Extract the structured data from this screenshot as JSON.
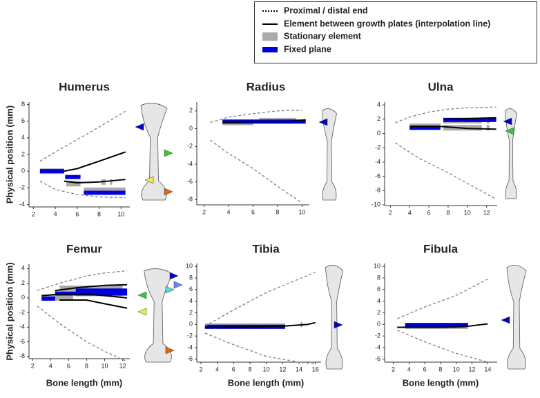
{
  "legend": {
    "end": {
      "label": "Proximal / distal end",
      "color": "#888888"
    },
    "interpolation": {
      "label": "Element between growth plates (interpolation line)",
      "color": "#000000"
    },
    "stationary": {
      "label": "Stationary element",
      "color": "#aaaaaa"
    },
    "fixed": {
      "label": "Fixed plane",
      "color": "#0000dd"
    }
  },
  "chart_data": [
    {
      "type": "line",
      "title": "Humerus",
      "ylabel": "Physical position (mm)",
      "xlim": [
        1.6,
        10.8
      ],
      "ylim": [
        -4.3,
        8.3
      ],
      "xticks": [
        2,
        4,
        6,
        8,
        10
      ],
      "yticks": [
        -4,
        -2,
        0,
        2,
        4,
        6,
        8
      ],
      "end_lines": [
        {
          "x": [
            2.6,
            4,
            6,
            8,
            10.4
          ],
          "values": [
            1.2,
            2.3,
            3.8,
            5.3,
            7.2
          ]
        },
        {
          "x": [
            2.6,
            4,
            6,
            8,
            10.4
          ],
          "values": [
            -1.2,
            -2.2,
            -2.8,
            -3.1,
            -3.2
          ]
        }
      ],
      "interpolation": [
        {
          "x": [
            4.8,
            6,
            8,
            10.4
          ],
          "values": [
            0,
            0.3,
            1.2,
            2.3
          ]
        },
        {
          "x": [
            4.8,
            6,
            8,
            10.4
          ],
          "values": [
            -1.2,
            -1.4,
            -1.3,
            -1
          ]
        }
      ],
      "stationary": [
        {
          "x": [
            2.6,
            4.8
          ],
          "y": 0
        },
        {
          "x": [
            5,
            6.3
          ],
          "y": -1.5
        },
        {
          "x": [
            8.2,
            8.6
          ],
          "y": -1.3
        },
        {
          "x": [
            9,
            9.2
          ],
          "y": -1.3
        },
        {
          "x": [
            6.6,
            10.4
          ],
          "y": -2.3
        }
      ],
      "fixed": [
        {
          "x": [
            2.6,
            4.8
          ],
          "y": 0
        },
        {
          "x": [
            4.9,
            6.3
          ],
          "y": -0.7
        },
        {
          "x": [
            6.6,
            10.4
          ],
          "y": -2.6
        }
      ]
    },
    {
      "type": "line",
      "title": "Radius",
      "xlim": [
        1.4,
        10.6
      ],
      "ylim": [
        -8.6,
        3
      ],
      "xticks": [
        2,
        4,
        6,
        8,
        10
      ],
      "yticks": [
        -8,
        -6,
        -4,
        -2,
        0,
        2
      ],
      "end_lines": [
        {
          "x": [
            2.5,
            4,
            6,
            8,
            10
          ],
          "values": [
            0.7,
            1.3,
            1.7,
            2,
            2.1
          ]
        },
        {
          "x": [
            2.5,
            4,
            6,
            8,
            10
          ],
          "values": [
            -1.3,
            -2.8,
            -4.5,
            -6.5,
            -8.4
          ]
        }
      ],
      "interpolation": [
        {
          "x": [
            3.5,
            6,
            9,
            10.3
          ],
          "values": [
            0.7,
            0.8,
            0.8,
            1
          ]
        }
      ],
      "stationary": [
        {
          "x": [
            3.5,
            6
          ],
          "y": 0.7
        },
        {
          "x": [
            6.5,
            9.5
          ],
          "y": 0.9
        }
      ],
      "fixed": [
        {
          "x": [
            3.5,
            10.3
          ],
          "y": 0.8
        }
      ]
    },
    {
      "type": "line",
      "title": "Ulna",
      "xlim": [
        1.4,
        13.1
      ],
      "ylim": [
        -10.1,
        4.4
      ],
      "xticks": [
        2,
        4,
        6,
        8,
        10,
        12
      ],
      "yticks": [
        -10,
        -8,
        -6,
        -4,
        -2,
        0,
        2,
        4
      ],
      "end_lines": [
        {
          "x": [
            2.5,
            4,
            6,
            8,
            10,
            13
          ],
          "values": [
            1.5,
            2.3,
            3,
            3.4,
            3.6,
            3.7
          ]
        },
        {
          "x": [
            2.5,
            5,
            8,
            10,
            13
          ],
          "values": [
            -1.3,
            -3.5,
            -5.5,
            -7,
            -9.2
          ]
        }
      ],
      "interpolation": [
        {
          "x": [
            7.5,
            13
          ],
          "values": [
            2,
            2.2
          ]
        },
        {
          "x": [
            4,
            7,
            10,
            13
          ],
          "values": [
            1,
            1,
            0.7,
            0.6
          ]
        }
      ],
      "stationary": [
        {
          "x": [
            4,
            7.2
          ],
          "y": 1
        },
        {
          "x": [
            7.5,
            11.5
          ],
          "y": 1.8
        },
        {
          "x": [
            7.5,
            11.5
          ],
          "y": 0.8
        },
        {
          "x": [
            12,
            12.3
          ],
          "y": 1.8
        },
        {
          "x": [
            12,
            12.3
          ],
          "y": 0.8
        }
      ],
      "fixed": [
        {
          "x": [
            4,
            7.2
          ],
          "y": 0.8
        },
        {
          "x": [
            7.5,
            13
          ],
          "y": 1.9
        }
      ]
    },
    {
      "type": "line",
      "title": "Femur",
      "ylabel": "Physical position (mm)",
      "xlabel": "Bone length (mm)",
      "xlim": [
        1.6,
        12.8
      ],
      "ylim": [
        -8.3,
        4.6
      ],
      "xticks": [
        2,
        4,
        6,
        8,
        10,
        12
      ],
      "yticks": [
        -8,
        -6,
        -4,
        -2,
        0,
        2,
        4
      ],
      "end_lines": [
        {
          "x": [
            2.5,
            5,
            8,
            10,
            12.5
          ],
          "values": [
            1,
            2,
            3,
            3.4,
            3.7
          ]
        },
        {
          "x": [
            2.5,
            5,
            8,
            10,
            12.5
          ],
          "values": [
            -1.1,
            -3.5,
            -6,
            -7.3,
            -8.7
          ]
        }
      ],
      "interpolation": [
        {
          "x": [
            3,
            5,
            8,
            10,
            12.5
          ],
          "values": [
            0.3,
            0.5,
            0.5,
            0.3,
            0
          ]
        },
        {
          "x": [
            4.5,
            7,
            10,
            12.5
          ],
          "values": [
            1,
            1.4,
            1.7,
            1.8
          ]
        },
        {
          "x": [
            5,
            8,
            10,
            12.5
          ],
          "values": [
            -0.3,
            -0.3,
            -0.8,
            -1.4
          ]
        }
      ],
      "stationary": [
        {
          "x": [
            3,
            6.5
          ],
          "y": 0
        },
        {
          "x": [
            5,
            12
          ],
          "y": 1.3
        },
        {
          "x": [
            6.8,
            12
          ],
          "y": 0.6
        }
      ],
      "fixed": [
        {
          "x": [
            3,
            4.5
          ],
          "y": -0.1
        },
        {
          "x": [
            4.5,
            12.5
          ],
          "y": 0.6
        },
        {
          "x": [
            6.8,
            12.5
          ],
          "y": 1
        }
      ]
    },
    {
      "type": "line",
      "title": "Tibia",
      "xlabel": "Bone length (mm)",
      "xlim": [
        1.5,
        16.7
      ],
      "ylim": [
        -6.5,
        10.5
      ],
      "xticks": [
        2,
        4,
        6,
        8,
        10,
        12,
        14,
        16
      ],
      "yticks": [
        -6,
        -4,
        -2,
        0,
        2,
        4,
        6,
        8,
        10
      ],
      "end_lines": [
        {
          "x": [
            2.5,
            6,
            10,
            16
          ],
          "values": [
            -0.3,
            2.5,
            5.5,
            9
          ]
        },
        {
          "x": [
            2.5,
            6,
            10,
            14,
            16
          ],
          "values": [
            -1.5,
            -3.5,
            -5.5,
            -6.5,
            -6.8
          ]
        }
      ],
      "interpolation": [
        {
          "x": [
            2.5,
            8,
            12,
            15,
            16
          ],
          "values": [
            -0.5,
            -0.4,
            -0.3,
            0,
            0.3
          ]
        }
      ],
      "stationary": [
        {
          "x": [
            2.5,
            12.3
          ],
          "y": -0.3
        },
        {
          "x": [
            14.2,
            14.4
          ],
          "y": 0
        }
      ],
      "fixed": [
        {
          "x": [
            2.5,
            12.3
          ],
          "y": -0.4
        }
      ]
    },
    {
      "type": "line",
      "title": "Fibula",
      "xlabel": "Bone length (mm)",
      "xlim": [
        0.9,
        15.2
      ],
      "ylim": [
        -6.5,
        10.5
      ],
      "xticks": [
        2,
        4,
        6,
        8,
        10,
        12,
        14
      ],
      "yticks": [
        -6,
        -4,
        -2,
        0,
        2,
        4,
        6,
        8,
        10
      ],
      "end_lines": [
        {
          "x": [
            2.5,
            6,
            10,
            14
          ],
          "values": [
            1,
            3,
            5,
            7.8
          ]
        },
        {
          "x": [
            2.5,
            6,
            10,
            14
          ],
          "values": [
            -1,
            -3,
            -5,
            -6.5
          ]
        }
      ],
      "interpolation": [
        {
          "x": [
            2.5,
            8,
            11,
            14
          ],
          "values": [
            -0.5,
            -0.5,
            -0.4,
            0.1
          ]
        }
      ],
      "stationary": [
        {
          "x": [
            3.5,
            11.5
          ],
          "y": -0.3
        }
      ],
      "fixed": [
        {
          "x": [
            3.5,
            11.5
          ],
          "y": -0.1
        }
      ]
    }
  ]
}
